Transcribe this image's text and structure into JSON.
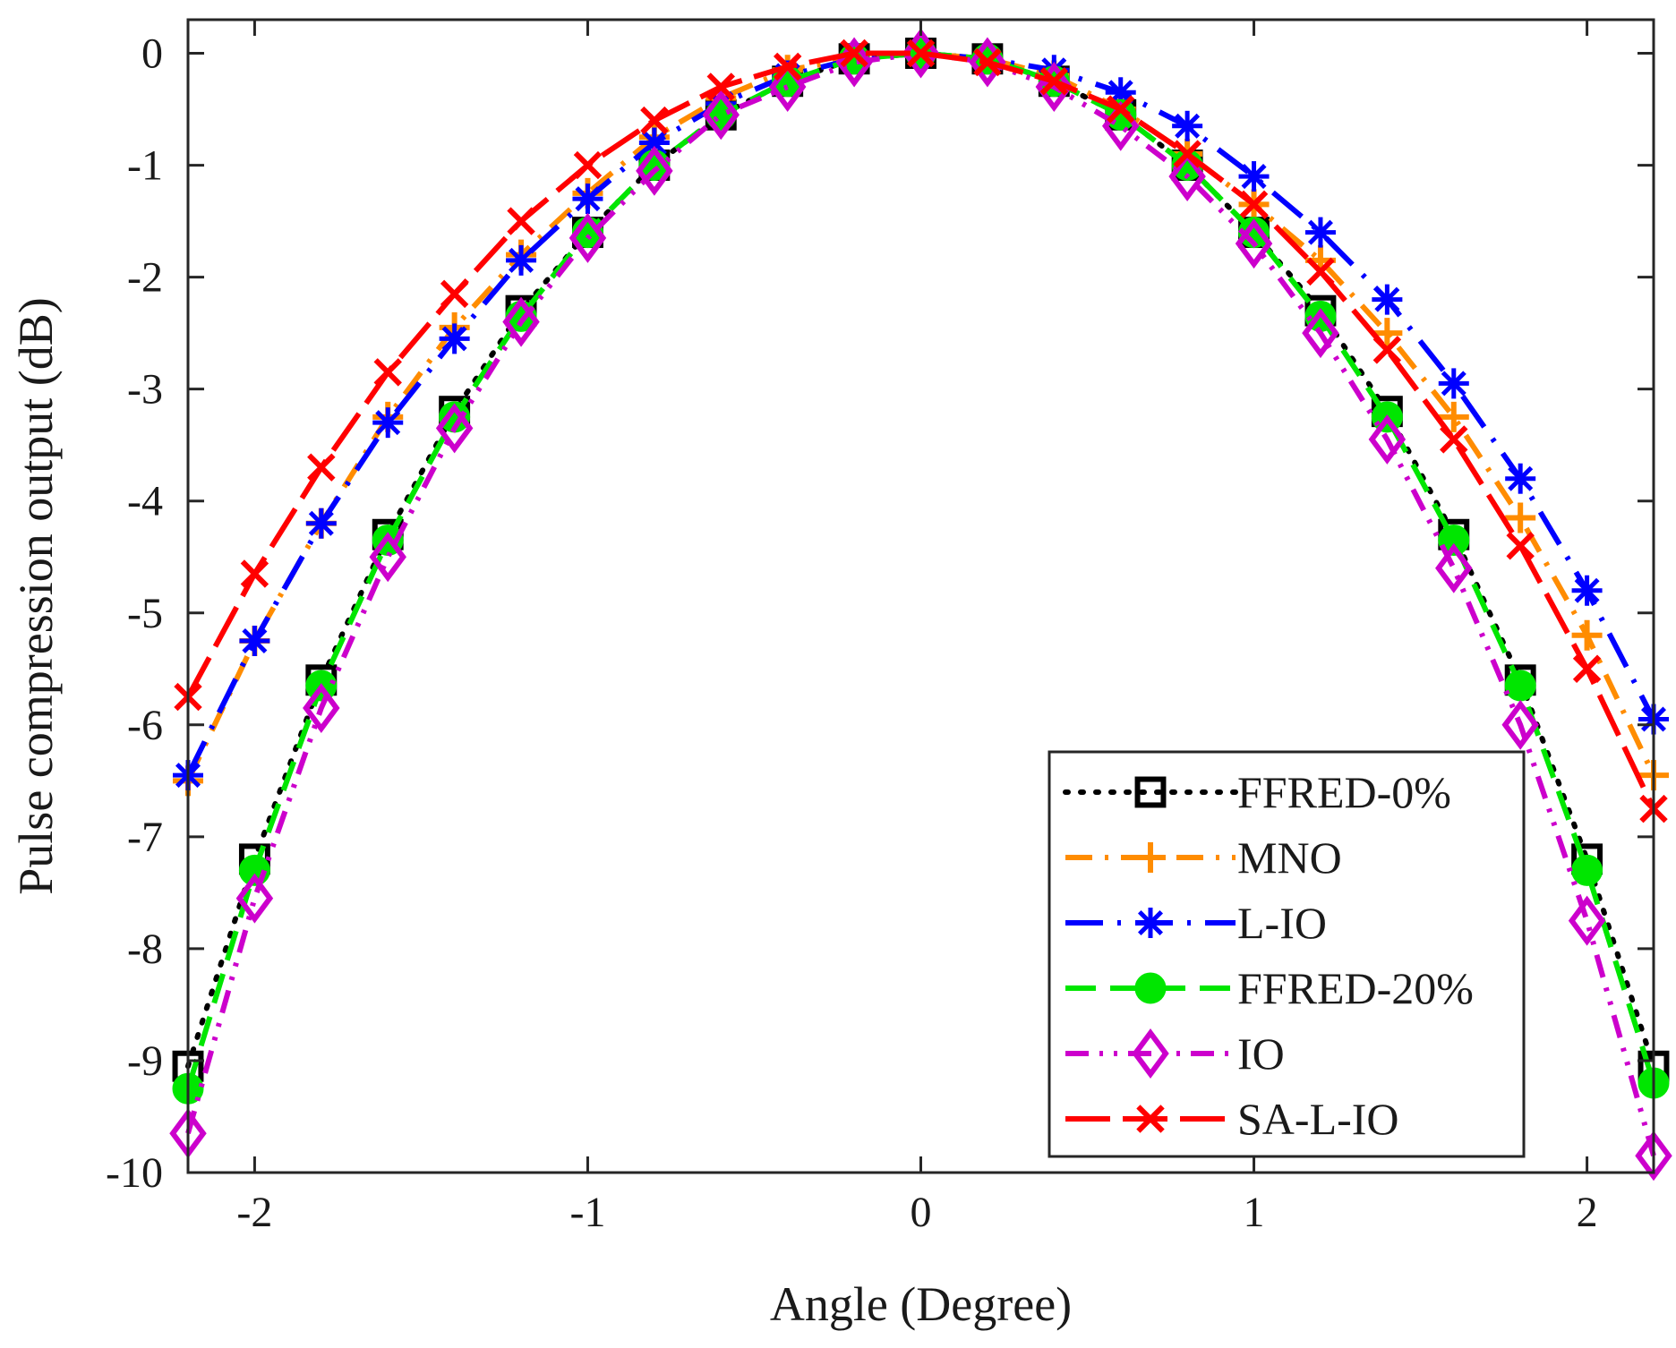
{
  "chart_data": {
    "type": "line",
    "title": "",
    "xlabel": "Angle (Degree)",
    "ylabel": "Pulse compression output (dB)",
    "xlim": [
      -2.2,
      2.2
    ],
    "ylim": [
      -10,
      0.3
    ],
    "xticks": [
      -2,
      -1,
      0,
      1,
      2
    ],
    "xtick_labels": [
      "-2",
      "-1",
      "0",
      "1",
      "2"
    ],
    "yticks": [
      0,
      -1,
      -2,
      -3,
      -4,
      -5,
      -6,
      -7,
      -8,
      -9,
      -10
    ],
    "ytick_labels": [
      "0",
      "-1",
      "-2",
      "-3",
      "-4",
      "-5",
      "-6",
      "-7",
      "-8",
      "-9",
      "-10"
    ],
    "grid": false,
    "legend_position": "bottom-right",
    "x": [
      -2.2,
      -2.0,
      -1.8,
      -1.6,
      -1.4,
      -1.2,
      -1.0,
      -0.8,
      -0.6,
      -0.4,
      -0.2,
      0.0,
      0.2,
      0.4,
      0.6,
      0.8,
      1.0,
      1.2,
      1.4,
      1.6,
      1.8,
      2.0,
      2.2
    ],
    "series": [
      {
        "name": "FFRED-0%",
        "color": "#000000",
        "dash": "dotted",
        "marker": "square",
        "values": [
          -9.05,
          -7.2,
          -5.6,
          -4.3,
          -3.2,
          -2.3,
          -1.6,
          -1.0,
          -0.55,
          -0.25,
          -0.05,
          0.0,
          -0.05,
          -0.25,
          -0.55,
          -1.0,
          -1.6,
          -2.3,
          -3.2,
          -4.3,
          -5.6,
          -7.2,
          -9.05
        ]
      },
      {
        "name": "MNO",
        "color": "#ff8c00",
        "dash": "dashdot",
        "marker": "plus",
        "values": [
          -6.5,
          -5.25,
          -4.2,
          -3.25,
          -2.45,
          -1.8,
          -1.25,
          -0.75,
          -0.4,
          -0.15,
          -0.05,
          0.0,
          -0.05,
          -0.2,
          -0.5,
          -0.9,
          -1.35,
          -1.85,
          -2.5,
          -3.25,
          -4.15,
          -5.2,
          -6.45
        ]
      },
      {
        "name": "L-IO",
        "color": "#0000ff",
        "dash": "longdashdot",
        "marker": "asterisk",
        "values": [
          -6.45,
          -5.25,
          -4.2,
          -3.3,
          -2.55,
          -1.85,
          -1.3,
          -0.8,
          -0.45,
          -0.2,
          -0.05,
          0.0,
          -0.05,
          -0.15,
          -0.35,
          -0.65,
          -1.1,
          -1.6,
          -2.2,
          -2.95,
          -3.8,
          -4.8,
          -5.95
        ]
      },
      {
        "name": "FFRED-20%",
        "color": "#00e600",
        "dash": "dashed",
        "marker": "circle",
        "values": [
          -9.25,
          -7.3,
          -5.65,
          -4.35,
          -3.25,
          -2.35,
          -1.6,
          -1.0,
          -0.55,
          -0.25,
          -0.05,
          0.0,
          -0.05,
          -0.25,
          -0.55,
          -1.0,
          -1.6,
          -2.35,
          -3.25,
          -4.35,
          -5.65,
          -7.3,
          -9.2
        ]
      },
      {
        "name": "IO",
        "color": "#cc00cc",
        "dash": "dashdotdot",
        "marker": "diamond",
        "values": [
          -9.65,
          -7.55,
          -5.85,
          -4.5,
          -3.35,
          -2.4,
          -1.65,
          -1.05,
          -0.55,
          -0.3,
          -0.08,
          0.0,
          -0.08,
          -0.3,
          -0.65,
          -1.1,
          -1.7,
          -2.5,
          -3.45,
          -4.6,
          -6.0,
          -7.75,
          -9.85
        ]
      },
      {
        "name": "SA-L-IO",
        "color": "#ff0000",
        "dash": "longdash",
        "marker": "x",
        "values": [
          -5.75,
          -4.65,
          -3.7,
          -2.85,
          -2.15,
          -1.5,
          -1.0,
          -0.6,
          -0.3,
          -0.12,
          0.0,
          0.0,
          -0.08,
          -0.25,
          -0.5,
          -0.9,
          -1.35,
          -1.95,
          -2.65,
          -3.45,
          -4.4,
          -5.5,
          -6.75
        ]
      }
    ]
  }
}
